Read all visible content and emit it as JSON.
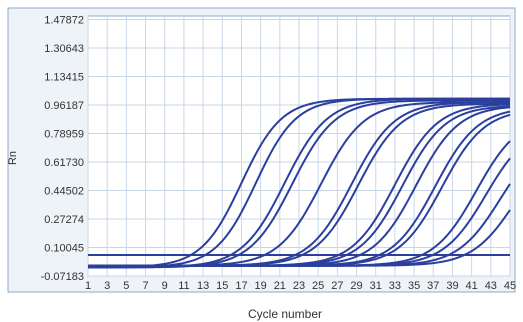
{
  "chart_data": {
    "type": "line",
    "title": "",
    "xlabel": "Cycle number",
    "ylabel": "Rn",
    "xlim": [
      1,
      45
    ],
    "ylim": [
      -0.07183,
      1.5
    ],
    "x_ticks": [
      1,
      3,
      5,
      7,
      9,
      11,
      13,
      15,
      17,
      19,
      21,
      23,
      25,
      27,
      29,
      31,
      33,
      35,
      37,
      39,
      41,
      43,
      45
    ],
    "y_ticks": [
      "-0.07183",
      "0.10045",
      "0.27274",
      "0.44502",
      "0.61730",
      "0.78959",
      "0.96187",
      "1.13415",
      "1.30643",
      "1.47872"
    ],
    "grid": true,
    "legend": "none",
    "colors": {
      "line": "#2b3f9e",
      "grid": "#c9d6e6",
      "frame": "#8fa8c8",
      "background": "#ffffff",
      "outer_background": "#eef3f8"
    },
    "series": [
      {
        "values_midpoint_cycle": 17.0,
        "baseline": -0.02,
        "plateau": 1.0,
        "slope": 0.48
      },
      {
        "values_midpoint_cycle": 18.5,
        "baseline": -0.02,
        "plateau": 1.0,
        "slope": 0.48
      },
      {
        "values_midpoint_cycle": 21.5,
        "baseline": -0.02,
        "plateau": 1.0,
        "slope": 0.45
      },
      {
        "values_midpoint_cycle": 22.3,
        "baseline": -0.02,
        "plateau": 0.99,
        "slope": 0.45
      },
      {
        "values_midpoint_cycle": 25.3,
        "baseline": -0.01,
        "plateau": 0.98,
        "slope": 0.45
      },
      {
        "values_midpoint_cycle": 28.5,
        "baseline": -0.01,
        "plateau": 0.98,
        "slope": 0.45
      },
      {
        "values_midpoint_cycle": 29.2,
        "baseline": -0.01,
        "plateau": 0.97,
        "slope": 0.45
      },
      {
        "values_midpoint_cycle": 33.0,
        "baseline": -0.01,
        "plateau": 0.97,
        "slope": 0.45
      },
      {
        "values_midpoint_cycle": 33.8,
        "baseline": -0.01,
        "plateau": 0.96,
        "slope": 0.45
      },
      {
        "values_midpoint_cycle": 35.2,
        "baseline": -0.01,
        "plateau": 0.96,
        "slope": 0.45
      },
      {
        "values_midpoint_cycle": 37.2,
        "baseline": -0.01,
        "plateau": 0.95,
        "slope": 0.45
      },
      {
        "values_midpoint_cycle": 37.9,
        "baseline": -0.01,
        "plateau": 0.94,
        "slope": 0.45
      },
      {
        "values_midpoint_cycle": 41.5,
        "baseline": -0.01,
        "plateau": 0.9,
        "slope": 0.45
      },
      {
        "values_midpoint_cycle": 42.5,
        "baseline": -0.01,
        "plateau": 0.85,
        "slope": 0.45
      },
      {
        "values_midpoint_cycle": 44.0,
        "baseline": -0.01,
        "plateau": 0.8,
        "slope": 0.45
      },
      {
        "values_midpoint_cycle": 45.5,
        "baseline": -0.01,
        "plateau": 0.75,
        "slope": 0.45
      },
      {
        "values_midpoint_cycle": 99.0,
        "baseline": 0.055,
        "plateau": 0.055,
        "slope": 0.0
      }
    ]
  }
}
